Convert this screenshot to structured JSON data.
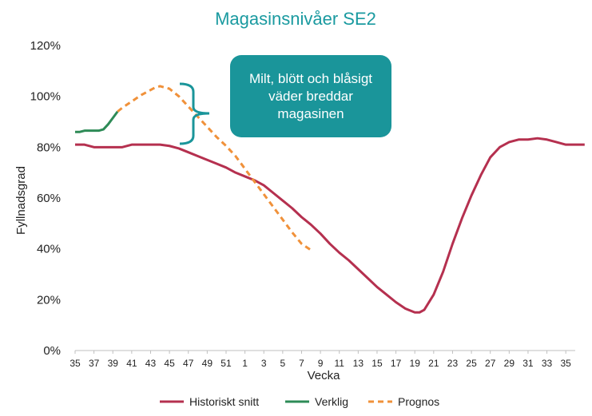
{
  "colors": {
    "title": "#1a9aa0",
    "historical": "#b5304f",
    "actual": "#2e8b57",
    "forecast": "#f0913a",
    "callout_bg": "#1a959a",
    "brace": "#1a959a",
    "axis": "#bfbfbf"
  },
  "callout": {
    "text": "Milt, blött och blåsigt väder breddar magasinen"
  },
  "chart_data": {
    "type": "line",
    "title": "Magasinsnivåer SE2",
    "xlabel": "Vecka",
    "ylabel": "Fyllnadsgrad",
    "ylim": [
      0,
      120
    ],
    "yticks": [
      0,
      20,
      40,
      60,
      80,
      100,
      120
    ],
    "ytick_labels": [
      "0%",
      "20%",
      "40%",
      "60%",
      "80%",
      "100%",
      "120%"
    ],
    "x_count": 53,
    "xtick_labels": [
      "35",
      "37",
      "39",
      "41",
      "43",
      "45",
      "47",
      "49",
      "51",
      "1",
      "3",
      "5",
      "7",
      "9",
      "11",
      "13",
      "15",
      "17",
      "19",
      "21",
      "23",
      "25",
      "27",
      "29",
      "31",
      "33",
      "35"
    ],
    "grid": false,
    "legend_position": "bottom",
    "series": [
      {
        "name": "Historiskt snitt",
        "style": "solid",
        "points": [
          [
            0,
            81
          ],
          [
            1,
            81
          ],
          [
            2,
            80
          ],
          [
            3,
            80
          ],
          [
            4,
            80
          ],
          [
            5,
            80
          ],
          [
            6,
            81
          ],
          [
            7,
            81
          ],
          [
            8,
            81
          ],
          [
            9,
            81
          ],
          [
            10,
            80.5
          ],
          [
            11,
            79.5
          ],
          [
            12,
            78
          ],
          [
            13,
            76.5
          ],
          [
            14,
            75
          ],
          [
            15,
            73.5
          ],
          [
            16,
            72
          ],
          [
            17,
            70
          ],
          [
            18,
            68.5
          ],
          [
            19,
            67
          ],
          [
            20,
            65
          ],
          [
            21,
            62
          ],
          [
            22,
            59
          ],
          [
            23,
            56
          ],
          [
            24,
            52.5
          ],
          [
            25,
            49.5
          ],
          [
            26,
            46
          ],
          [
            27,
            42
          ],
          [
            28,
            38.5
          ],
          [
            29,
            35.5
          ],
          [
            30,
            32
          ],
          [
            31,
            28.5
          ],
          [
            32,
            25
          ],
          [
            33,
            22
          ],
          [
            34,
            19
          ],
          [
            35,
            16.5
          ],
          [
            36,
            15
          ],
          [
            36.5,
            15
          ],
          [
            37,
            16
          ],
          [
            38,
            22
          ],
          [
            39,
            31
          ],
          [
            40,
            42
          ],
          [
            41,
            52
          ],
          [
            42,
            61
          ],
          [
            43,
            69
          ],
          [
            44,
            76
          ],
          [
            45,
            80
          ],
          [
            46,
            82
          ],
          [
            47,
            83
          ],
          [
            48,
            83
          ],
          [
            49,
            83.5
          ],
          [
            50,
            83
          ],
          [
            51,
            82
          ],
          [
            52,
            81
          ],
          [
            53,
            81
          ],
          [
            54,
            81
          ]
        ]
      },
      {
        "name": "Verklig",
        "style": "solid",
        "points": [
          [
            0,
            86
          ],
          [
            0.5,
            86
          ],
          [
            1,
            86.5
          ],
          [
            1.5,
            86.5
          ],
          [
            2,
            86.5
          ],
          [
            2.5,
            86.5
          ],
          [
            3,
            87
          ],
          [
            3.5,
            89
          ],
          [
            4,
            91.5
          ],
          [
            4.5,
            94
          ]
        ]
      },
      {
        "name": "Prognos",
        "style": "dashed",
        "points": [
          [
            4.5,
            94
          ],
          [
            5,
            95.5
          ],
          [
            6,
            98
          ],
          [
            7,
            100.5
          ],
          [
            8,
            102.5
          ],
          [
            8.5,
            103.5
          ],
          [
            9,
            104
          ],
          [
            9.5,
            103.5
          ],
          [
            10,
            103
          ],
          [
            11,
            100
          ],
          [
            12,
            96
          ],
          [
            13,
            92
          ],
          [
            14,
            88
          ],
          [
            15,
            84
          ],
          [
            16,
            80.5
          ],
          [
            17,
            76.5
          ],
          [
            18,
            71.5
          ],
          [
            19,
            66.5
          ],
          [
            20,
            61.5
          ],
          [
            21,
            56.5
          ],
          [
            22,
            51.5
          ],
          [
            23,
            46.5
          ],
          [
            24,
            42
          ],
          [
            25,
            39.5
          ]
        ]
      }
    ]
  }
}
